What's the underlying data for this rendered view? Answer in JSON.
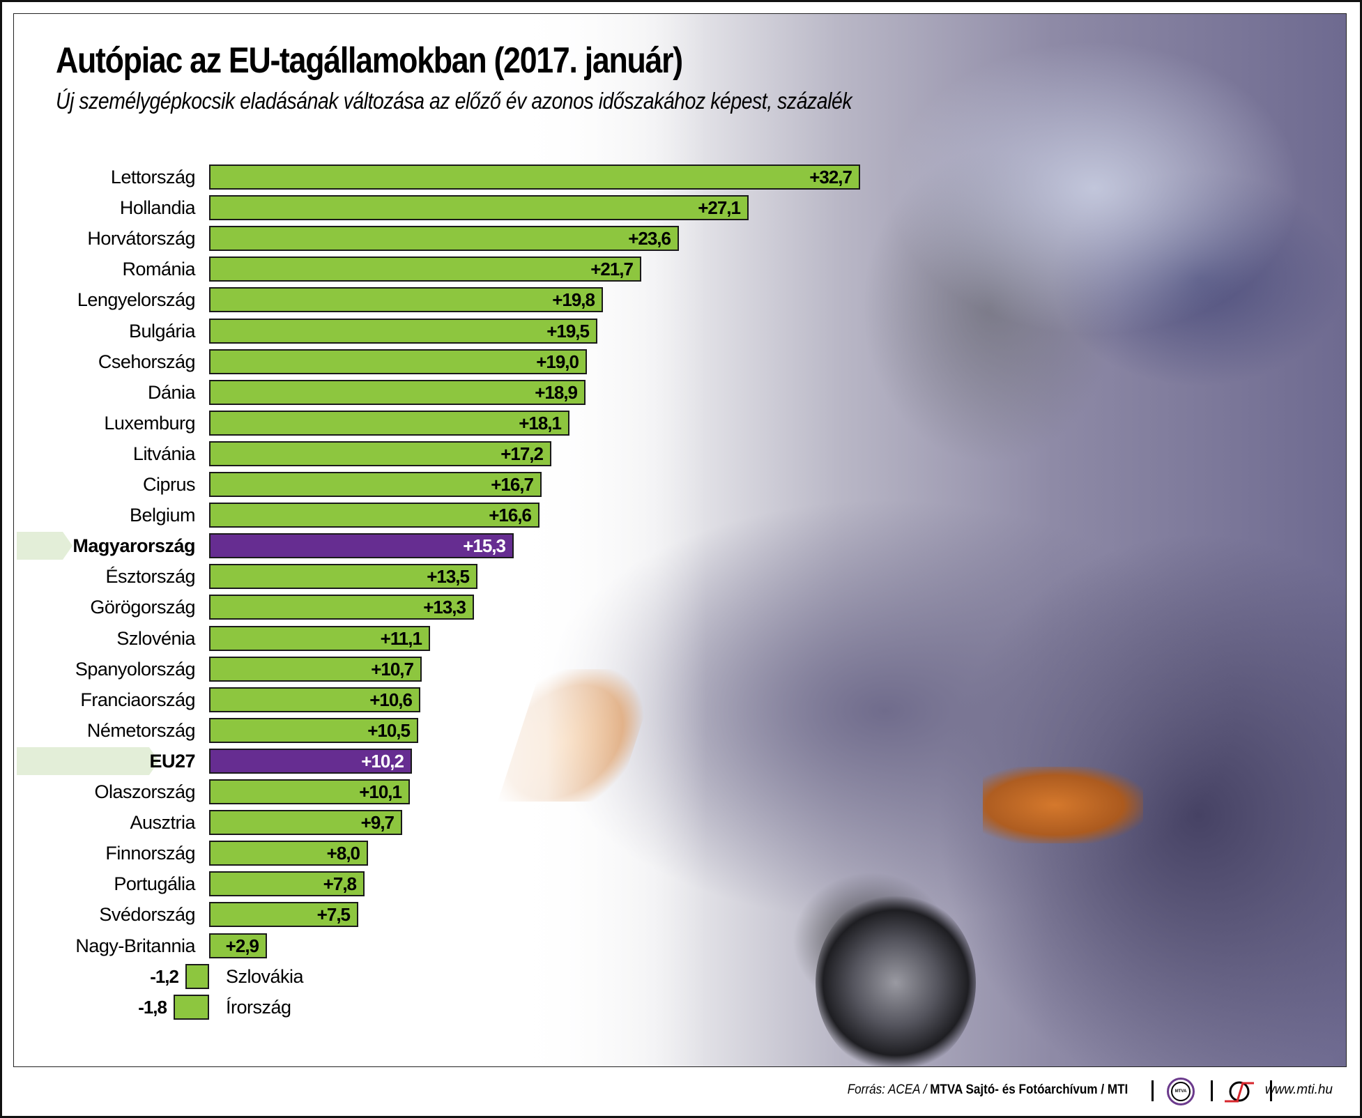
{
  "header": {
    "title": "Autópiac az EU-tagállamokban (2017. január)",
    "subtitle": "Új személygépkocsik eladásának változása az előző év azonos időszakához képest, százalék"
  },
  "colors": {
    "positive_bar": "#8dc63f",
    "highlight_bar": "#662d91",
    "highlight_marker": "#e3eed8"
  },
  "rows": [
    {
      "label": "Lettország",
      "value_label": "+32,7"
    },
    {
      "label": "Hollandia",
      "value_label": "+27,1"
    },
    {
      "label": "Horvátország",
      "value_label": "+23,6"
    },
    {
      "label": "Románia",
      "value_label": "+21,7"
    },
    {
      "label": "Lengyelország",
      "value_label": "+19,8"
    },
    {
      "label": "Bulgária",
      "value_label": "+19,5"
    },
    {
      "label": "Csehország",
      "value_label": "+19,0"
    },
    {
      "label": "Dánia",
      "value_label": "+18,9"
    },
    {
      "label": "Luxemburg",
      "value_label": "+18,1"
    },
    {
      "label": "Litvánia",
      "value_label": "+17,2"
    },
    {
      "label": "Ciprus",
      "value_label": "+16,7"
    },
    {
      "label": "Belgium",
      "value_label": "+16,6"
    },
    {
      "label": "Magyarország",
      "value_label": "+15,3"
    },
    {
      "label": "Észtország",
      "value_label": "+13,5"
    },
    {
      "label": "Görögország",
      "value_label": "+13,3"
    },
    {
      "label": "Szlovénia",
      "value_label": "+11,1"
    },
    {
      "label": "Spanyolország",
      "value_label": "+10,7"
    },
    {
      "label": "Franciaország",
      "value_label": "+10,6"
    },
    {
      "label": "Németország",
      "value_label": "+10,5"
    },
    {
      "label": "EU27",
      "value_label": "+10,2"
    },
    {
      "label": "Olaszország",
      "value_label": "+10,1"
    },
    {
      "label": "Ausztria",
      "value_label": "+9,7"
    },
    {
      "label": "Finnország",
      "value_label": "+8,0"
    },
    {
      "label": "Portugália",
      "value_label": "+7,8"
    },
    {
      "label": "Svédország",
      "value_label": "+7,5"
    },
    {
      "label": "Nagy-Britannia",
      "value_label": "+2,9"
    },
    {
      "label": "Szlovákia",
      "value_label": "-1,2"
    },
    {
      "label": "Írország",
      "value_label": "-1,8"
    }
  ],
  "chart_data": {
    "type": "bar",
    "orientation": "horizontal",
    "title": "Autópiac az EU-tagállamokban (2017. január)",
    "subtitle": "Új személygépkocsik eladásának változása az előző év azonos időszakához képest, százalék",
    "xlabel": "",
    "ylabel": "",
    "unit": "%",
    "grid": false,
    "legend": null,
    "categories": [
      "Lettország",
      "Hollandia",
      "Horvátország",
      "Románia",
      "Lengyelország",
      "Bulgária",
      "Csehország",
      "Dánia",
      "Luxemburg",
      "Litvánia",
      "Ciprus",
      "Belgium",
      "Magyarország",
      "Észtország",
      "Görögország",
      "Szlovénia",
      "Spanyolország",
      "Franciaország",
      "Németország",
      "EU27",
      "Olaszország",
      "Ausztria",
      "Finnország",
      "Portugália",
      "Svédország",
      "Nagy-Britannia",
      "Szlovákia",
      "Írország"
    ],
    "values": [
      32.7,
      27.1,
      23.6,
      21.7,
      19.8,
      19.5,
      19.0,
      18.9,
      18.1,
      17.2,
      16.7,
      16.6,
      15.3,
      13.5,
      13.3,
      11.1,
      10.7,
      10.6,
      10.5,
      10.2,
      10.1,
      9.7,
      8.0,
      7.8,
      7.5,
      2.9,
      -1.2,
      -1.8
    ],
    "highlighted": [
      "Magyarország",
      "EU27"
    ],
    "xlim": [
      -1.8,
      32.7
    ]
  },
  "footer": {
    "source_prefix": "Forrás: ACEA / ",
    "source_bold": "MTVA Sajtó- és Fotóarchívum / MTI",
    "mtva_logo_text": "MTVA",
    "url": "www.mti.hu"
  }
}
